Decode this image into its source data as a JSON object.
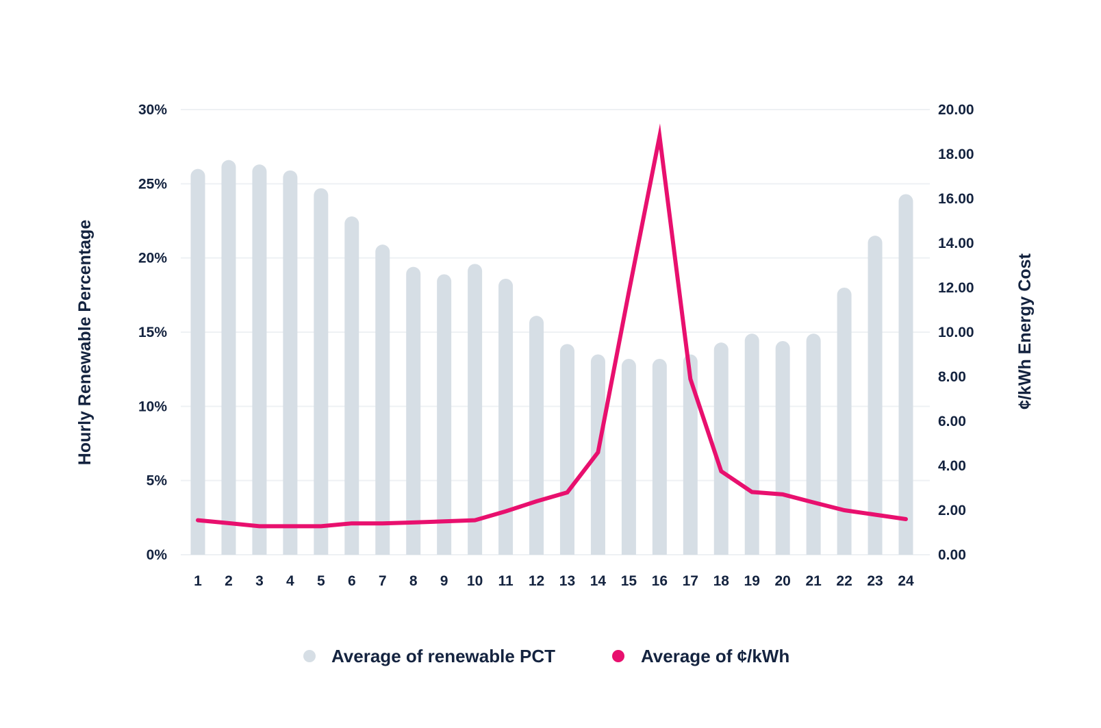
{
  "colors": {
    "bar": "#d6dee5",
    "line": "#e8106e",
    "text": "#14233f",
    "grid": "#eef1f4"
  },
  "chart_data": {
    "type": "bar",
    "categories": [
      "1",
      "2",
      "3",
      "4",
      "5",
      "6",
      "7",
      "8",
      "9",
      "10",
      "11",
      "12",
      "13",
      "14",
      "15",
      "16",
      "17",
      "18",
      "19",
      "20",
      "21",
      "22",
      "23",
      "24"
    ],
    "series": [
      {
        "name": "Average of renewable PCT",
        "type": "bar",
        "axis": "left",
        "values": [
          26.0,
          26.6,
          26.3,
          25.9,
          24.7,
          22.8,
          20.9,
          19.4,
          18.9,
          19.6,
          18.6,
          16.1,
          14.2,
          13.5,
          13.2,
          13.2,
          13.5,
          14.3,
          14.9,
          14.4,
          14.9,
          18.0,
          21.5,
          24.3
        ]
      },
      {
        "name": "Average of ¢/kWh",
        "type": "line",
        "axis": "right",
        "values": [
          1.55,
          1.42,
          1.28,
          1.28,
          1.28,
          1.41,
          1.41,
          1.45,
          1.5,
          1.55,
          1.95,
          2.4,
          2.8,
          4.6,
          11.8,
          18.8,
          7.9,
          3.75,
          2.82,
          2.71,
          2.35,
          2.0,
          1.8,
          1.6
        ]
      }
    ],
    "y_left": {
      "label": "Hourly Renewable Percentage",
      "ticks": [
        "0%",
        "5%",
        "10%",
        "15%",
        "20%",
        "25%",
        "30%"
      ],
      "range": [
        0,
        30
      ]
    },
    "y_right": {
      "label": "¢/kWh Energy Cost",
      "ticks": [
        "0.00",
        "2.00",
        "4.00",
        "6.00",
        "8.00",
        "10.00",
        "12.00",
        "14.00",
        "16.00",
        "18.00",
        "20.00"
      ],
      "range": [
        0,
        20
      ]
    },
    "grid": true,
    "legend": {
      "position": "bottom",
      "items": [
        "Average of renewable PCT",
        "Average of ¢/kWh"
      ]
    }
  }
}
